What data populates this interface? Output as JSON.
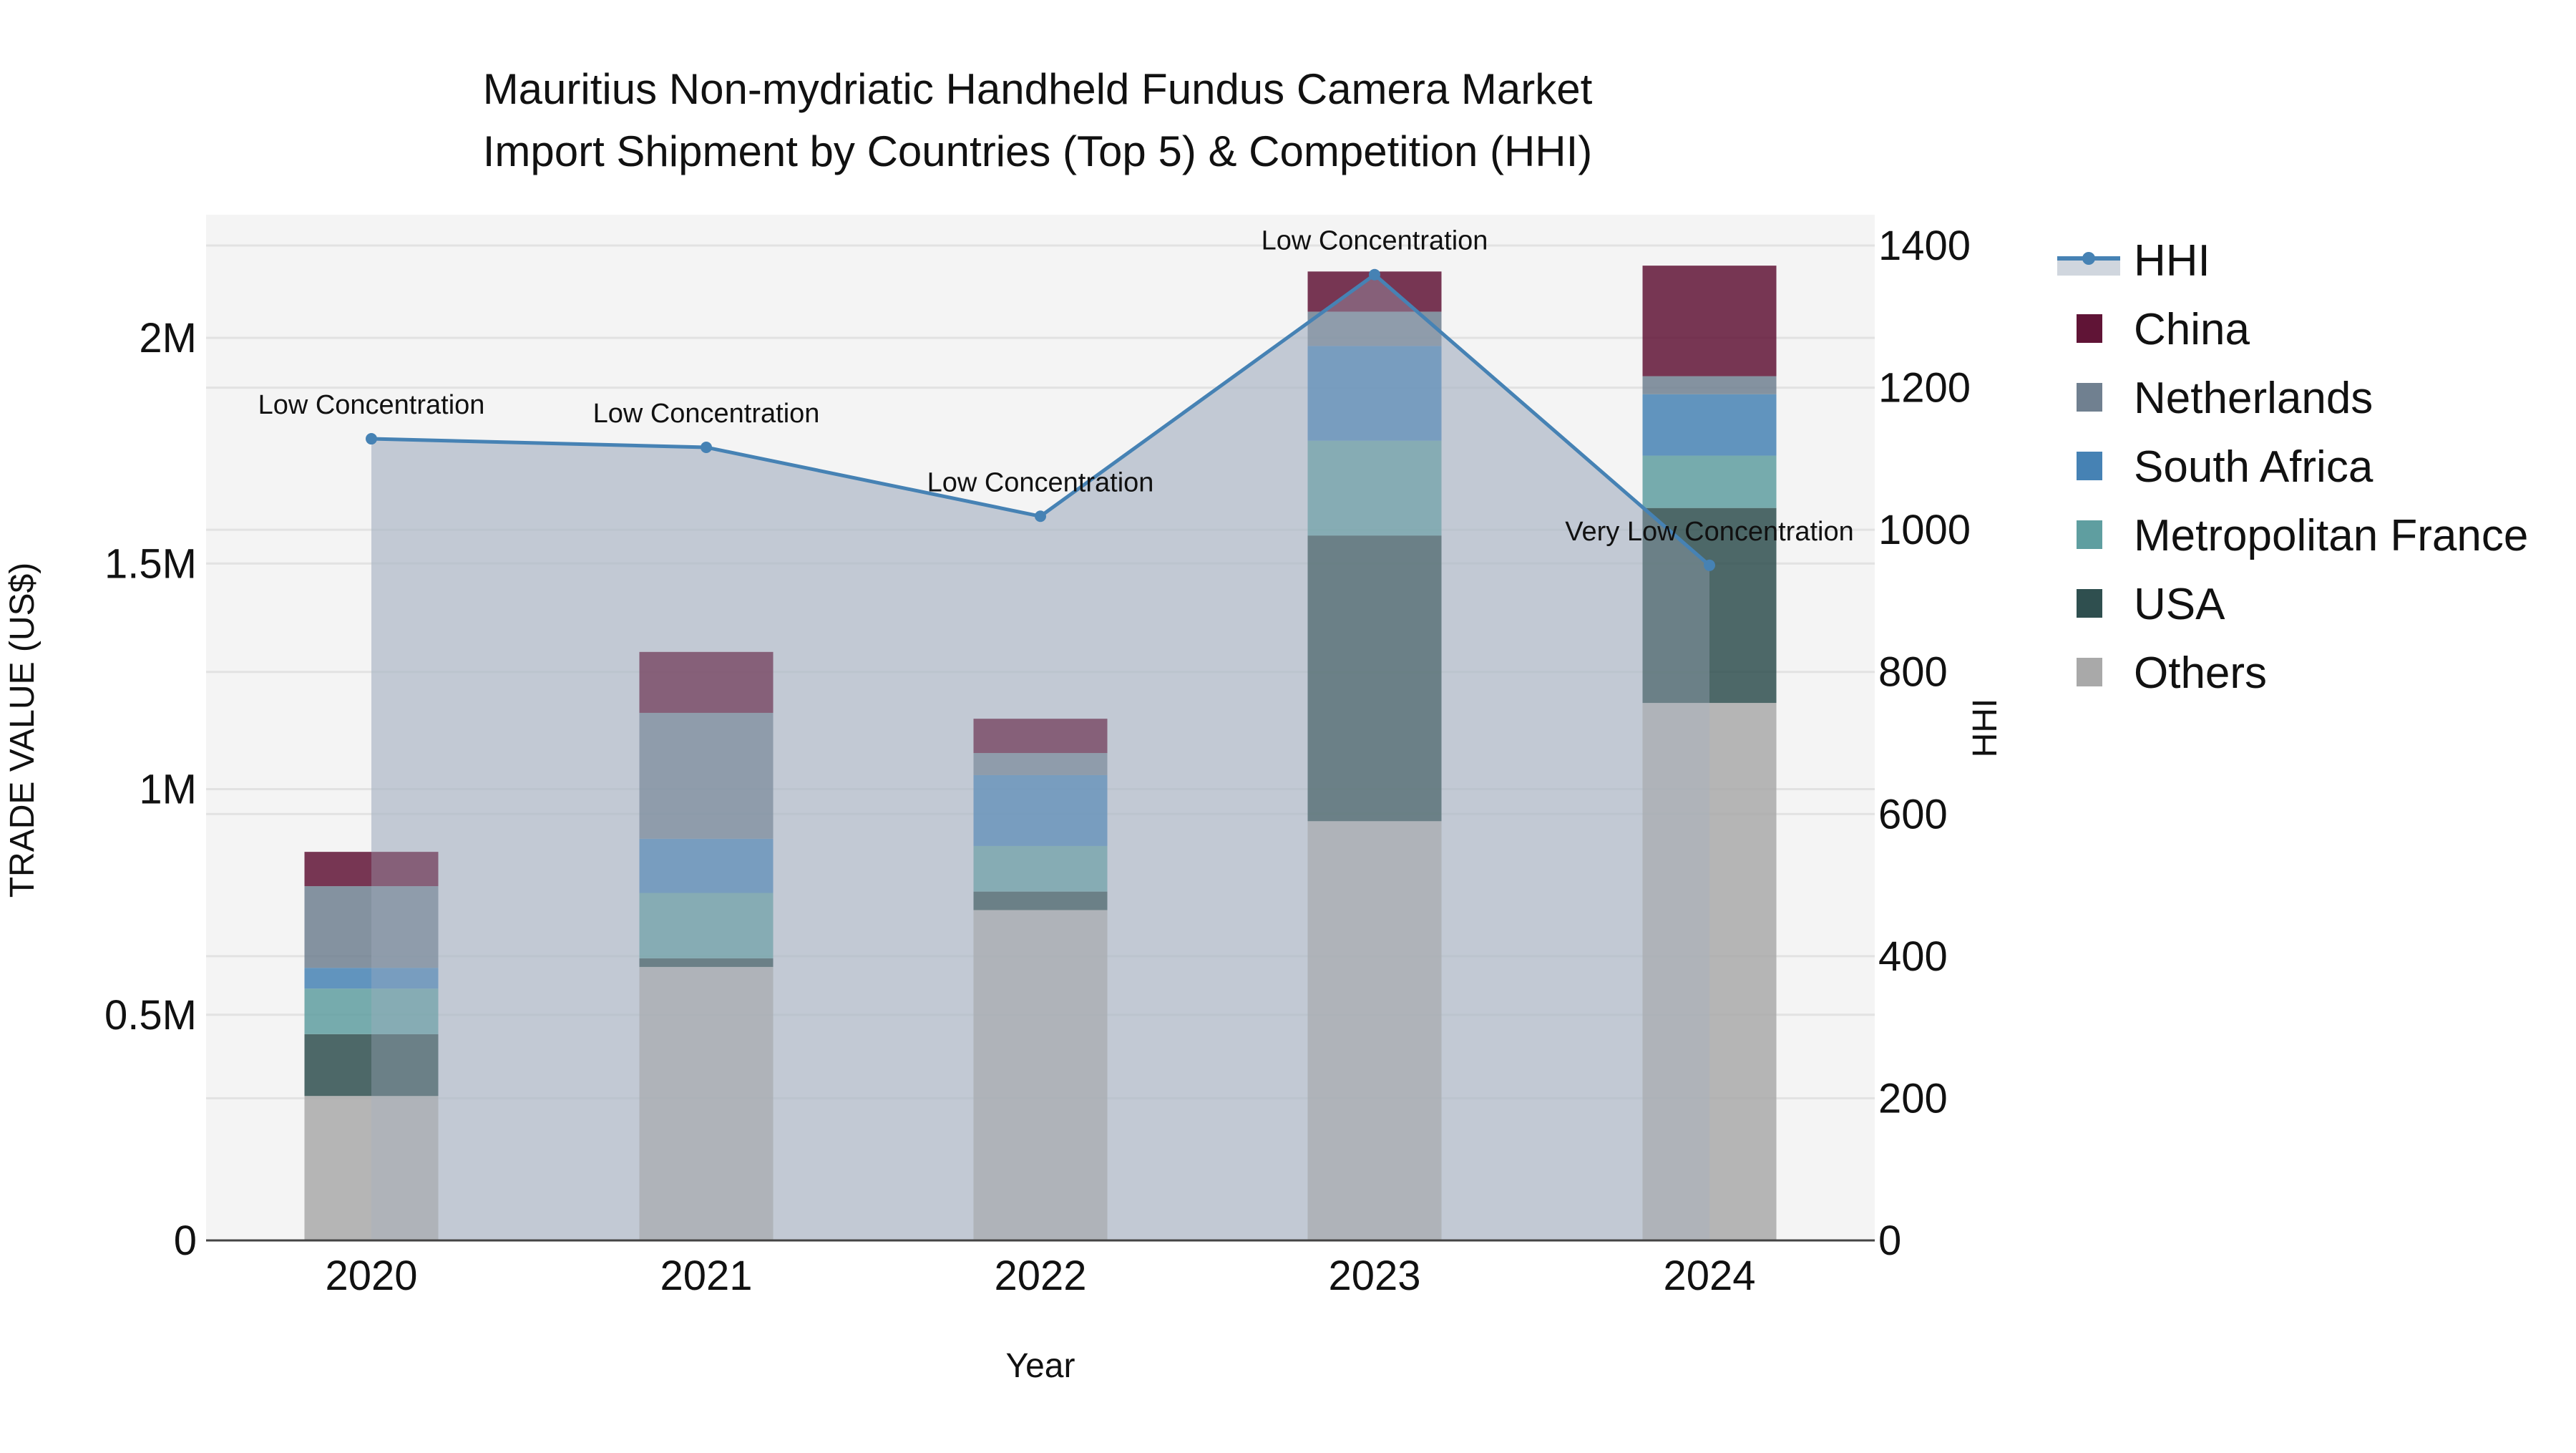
{
  "chart_data": {
    "type": "bar",
    "title": "Mauritius Non-mydriatic Handheld Fundus Camera Market",
    "subtitle": "Import Shipment by Countries (Top 5) & Competition (HHI)",
    "xlabel": "Year",
    "ylabel": "TRADE VALUE (US$)",
    "y2label": "HHI",
    "categories": [
      "2020",
      "2021",
      "2022",
      "2023",
      "2024"
    ],
    "stacked": true,
    "ylim": [
      0,
      2270000
    ],
    "y2lim": [
      0,
      1440
    ],
    "yticks": [
      0,
      500000,
      1000000,
      1500000,
      2000000
    ],
    "ytick_labels": [
      "0",
      "0.5M",
      "1M",
      "1.5M",
      "2M"
    ],
    "y2ticks": [
      0,
      200,
      400,
      600,
      800,
      1000,
      1200,
      1400
    ],
    "y2tick_labels": [
      "0",
      "200",
      "400",
      "600",
      "800",
      "1000",
      "1200",
      "1400"
    ],
    "grid": true,
    "legend_position": "right",
    "series": [
      {
        "name": "Others",
        "color": "#a9a9a9",
        "values": [
          320000,
          606000,
          732000,
          929000,
          1191000
        ]
      },
      {
        "name": "USA",
        "color": "#2f4f4f",
        "values": [
          137000,
          19000,
          41000,
          633000,
          432000
        ]
      },
      {
        "name": "Metropolitan France",
        "color": "#5f9ea0",
        "values": [
          101000,
          145000,
          101000,
          210000,
          116000
        ]
      },
      {
        "name": "South Africa",
        "color": "#4682b4",
        "values": [
          46000,
          120000,
          157000,
          210000,
          136000
        ]
      },
      {
        "name": "Netherlands",
        "color": "#708090",
        "values": [
          181000,
          279000,
          49000,
          76000,
          40000
        ]
      },
      {
        "name": "China",
        "color": "#601436",
        "values": [
          76000,
          135000,
          76000,
          89000,
          245000
        ]
      }
    ],
    "line_series": {
      "name": "HHI",
      "axis": "y2",
      "color": "#4682b4",
      "fill": "rgba(176,186,200,0.6)",
      "values": [
        1128,
        1116,
        1019,
        1359,
        950
      ],
      "annotations": [
        "Low Concentration",
        "Low Concentration",
        "Low Concentration",
        "Low Concentration",
        "Very Low Concentration"
      ]
    }
  },
  "legend": {
    "items": [
      {
        "label": "HHI",
        "kind": "line",
        "color": "#4682b4"
      },
      {
        "label": "China",
        "kind": "box",
        "color": "#601436"
      },
      {
        "label": "Netherlands",
        "kind": "box",
        "color": "#708090"
      },
      {
        "label": "South Africa",
        "kind": "box",
        "color": "#4682b4"
      },
      {
        "label": "Metropolitan France",
        "kind": "box",
        "color": "#5f9ea0"
      },
      {
        "label": "USA",
        "kind": "box",
        "color": "#2f4f4f"
      },
      {
        "label": "Others",
        "kind": "box",
        "color": "#a9a9a9"
      }
    ]
  },
  "colors": {
    "plot_bg": "#f4f4f4",
    "grid": "#e2e2e2",
    "axis_line": "#444444",
    "text": "#111111"
  }
}
